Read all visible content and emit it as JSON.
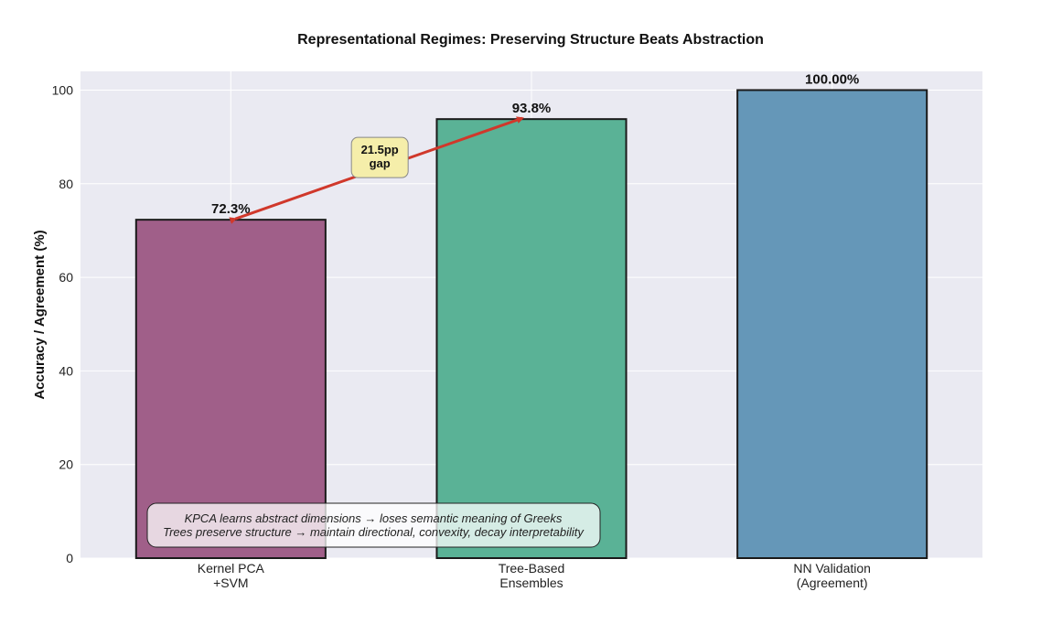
{
  "chart_data": {
    "type": "bar",
    "title": "Representational Regimes: Preserving Structure Beats Abstraction",
    "xlabel": "",
    "ylabel": "Accuracy / Agreement (%)",
    "categories": [
      "Kernel PCA\n+SVM",
      "Tree-Based\nEnsembles",
      "NN Validation\n(Agreement)"
    ],
    "values": [
      72.3,
      93.8,
      100.0
    ],
    "value_labels": [
      "72.3%",
      "93.8%",
      "100.00%"
    ],
    "colors": [
      "#a05f89",
      "#5ab296",
      "#6597b8"
    ],
    "ylim": [
      0,
      104
    ],
    "yticks": [
      0,
      20,
      40,
      60,
      80,
      100
    ],
    "grid": true,
    "annotation_gap": {
      "text": "21.5pp\ngap",
      "from_bar": 0,
      "to_bar": 1,
      "arrow_color": "#d0382b"
    },
    "note": {
      "lines": [
        "KPCA learns abstract dimensions → loses semantic meaning of Greeks",
        "Trees preserve structure → maintain directional, convexity, decay interpretability"
      ]
    }
  }
}
